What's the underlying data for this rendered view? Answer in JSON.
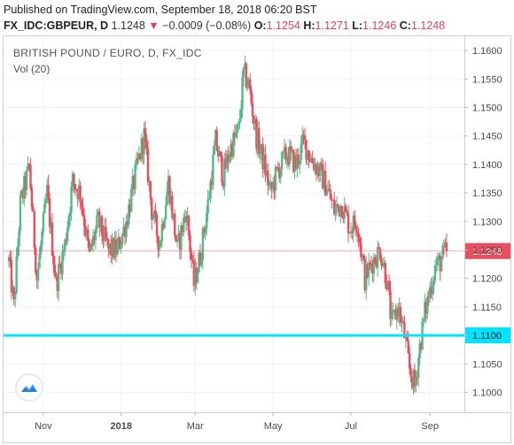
{
  "header": {
    "line1": "Published on TradingView.com, September 18, 2018 06:20 BST",
    "symbol": "FX_IDC:GBPEUR, D",
    "last": "1.1248",
    "arrow": "▼",
    "change": "−0.0009 (−0.08%)",
    "o_label": "O:",
    "o_value": "1.1254",
    "h_label": "H:",
    "h_value": "1.1271",
    "l_label": "L:",
    "l_value": "1.1246",
    "c_label": "C:",
    "c_value": "1.1248"
  },
  "chart_title": "BRITISH POUND / EURO, D, FX_IDC",
  "volume_label": "Vol (20)",
  "chart_data": {
    "type": "candlestick",
    "ylim": [
      1.0965,
      1.1625
    ],
    "y_ticks": [
      "1.1600",
      "1.1550",
      "1.1500",
      "1.1450",
      "1.1400",
      "1.1350",
      "1.1300",
      "1.1250",
      "1.1200",
      "1.1150",
      "1.1100",
      "1.1050",
      "1.1000"
    ],
    "x_ticks": [
      {
        "label": "Nov",
        "day": 27
      },
      {
        "label": "2018",
        "day": 88
      },
      {
        "label": "Mar",
        "day": 146
      },
      {
        "label": "May",
        "day": 207
      },
      {
        "label": "Jul",
        "day": 268
      },
      {
        "label": "Sep",
        "day": 330
      }
    ],
    "x_range_days": [
      0,
      350
    ],
    "price_line": {
      "value": 1.1248,
      "label": "1.1248"
    },
    "horizontal_line": {
      "value": 1.11,
      "label": "1.1100",
      "color": "#00e5ff"
    },
    "up_color": "#53b987",
    "down_color": "#eb4d5c",
    "waypoints": [
      {
        "day": 0,
        "price": 1.123
      },
      {
        "day": 4,
        "price": 1.115
      },
      {
        "day": 9,
        "price": 1.133
      },
      {
        "day": 16,
        "price": 1.1395
      },
      {
        "day": 22,
        "price": 1.12
      },
      {
        "day": 30,
        "price": 1.135
      },
      {
        "day": 37,
        "price": 1.119
      },
      {
        "day": 44,
        "price": 1.126
      },
      {
        "day": 50,
        "price": 1.137
      },
      {
        "day": 56,
        "price": 1.135
      },
      {
        "day": 63,
        "price": 1.124
      },
      {
        "day": 70,
        "price": 1.13
      },
      {
        "day": 78,
        "price": 1.125
      },
      {
        "day": 85,
        "price": 1.125
      },
      {
        "day": 92,
        "price": 1.13
      },
      {
        "day": 99,
        "price": 1.138
      },
      {
        "day": 106,
        "price": 1.145
      },
      {
        "day": 112,
        "price": 1.132
      },
      {
        "day": 118,
        "price": 1.126
      },
      {
        "day": 125,
        "price": 1.137
      },
      {
        "day": 132,
        "price": 1.125
      },
      {
        "day": 139,
        "price": 1.132
      },
      {
        "day": 145,
        "price": 1.119
      },
      {
        "day": 150,
        "price": 1.124
      },
      {
        "day": 156,
        "price": 1.133
      },
      {
        "day": 162,
        "price": 1.144
      },
      {
        "day": 168,
        "price": 1.138
      },
      {
        "day": 174,
        "price": 1.143
      },
      {
        "day": 180,
        "price": 1.146
      },
      {
        "day": 184,
        "price": 1.156
      },
      {
        "day": 188,
        "price": 1.154
      },
      {
        "day": 194,
        "price": 1.145
      },
      {
        "day": 200,
        "price": 1.14
      },
      {
        "day": 205,
        "price": 1.135
      },
      {
        "day": 211,
        "price": 1.139
      },
      {
        "day": 218,
        "price": 1.142
      },
      {
        "day": 225,
        "price": 1.14
      },
      {
        "day": 231,
        "price": 1.144
      },
      {
        "day": 237,
        "price": 1.141
      },
      {
        "day": 243,
        "price": 1.139
      },
      {
        "day": 249,
        "price": 1.136
      },
      {
        "day": 255,
        "price": 1.132
      },
      {
        "day": 261,
        "price": 1.133
      },
      {
        "day": 267,
        "price": 1.129
      },
      {
        "day": 273,
        "price": 1.13
      },
      {
        "day": 279,
        "price": 1.12
      },
      {
        "day": 285,
        "price": 1.123
      },
      {
        "day": 291,
        "price": 1.125
      },
      {
        "day": 296,
        "price": 1.12
      },
      {
        "day": 300,
        "price": 1.112
      },
      {
        "day": 305,
        "price": 1.115
      },
      {
        "day": 310,
        "price": 1.11
      },
      {
        "day": 314,
        "price": 1.104
      },
      {
        "day": 318,
        "price": 1.101
      },
      {
        "day": 322,
        "price": 1.108
      },
      {
        "day": 326,
        "price": 1.114
      },
      {
        "day": 330,
        "price": 1.118
      },
      {
        "day": 334,
        "price": 1.122
      },
      {
        "day": 338,
        "price": 1.123
      },
      {
        "day": 343,
        "price": 1.1248
      }
    ]
  },
  "icons": {
    "logo": "tradingview-logo-icon"
  }
}
